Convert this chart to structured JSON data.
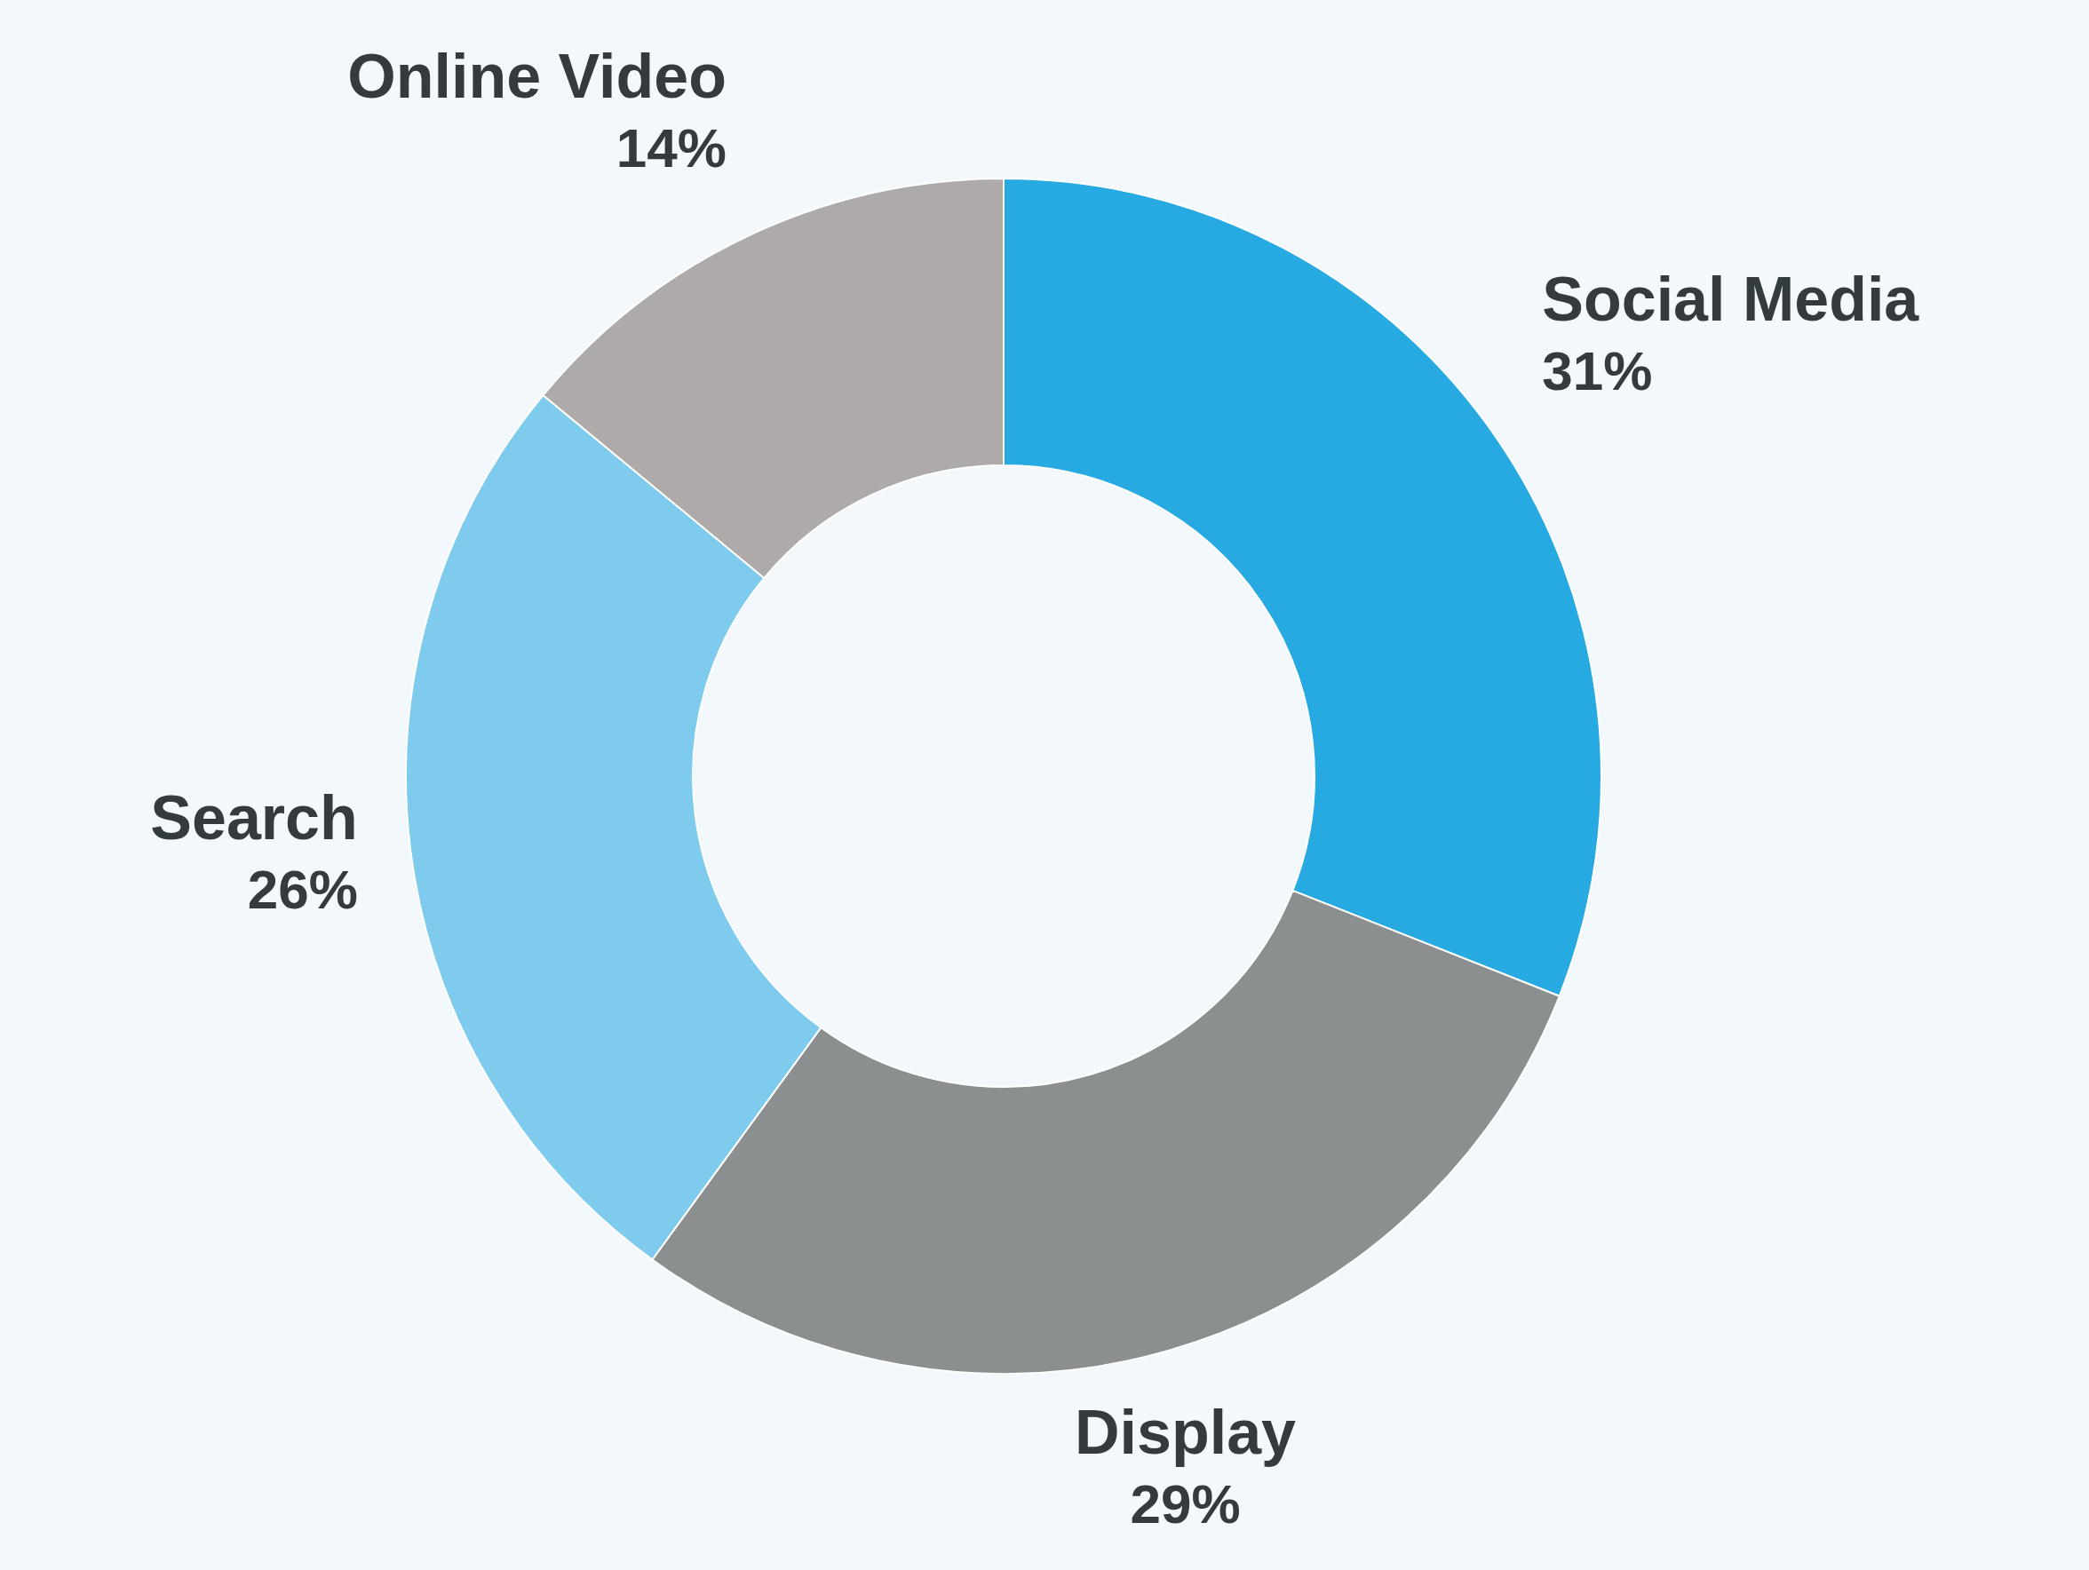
{
  "chart_data": {
    "type": "donut",
    "categories": [
      "Social Media",
      "Display",
      "Search",
      "Online Video"
    ],
    "values": [
      31,
      29,
      26,
      14
    ],
    "colors": [
      "#27aae1",
      "#8c8f8f",
      "#7ecbed",
      "#aeaaa9"
    ],
    "value_labels": [
      "31%",
      "29%",
      "26%",
      "14%"
    ],
    "legend": false
  }
}
